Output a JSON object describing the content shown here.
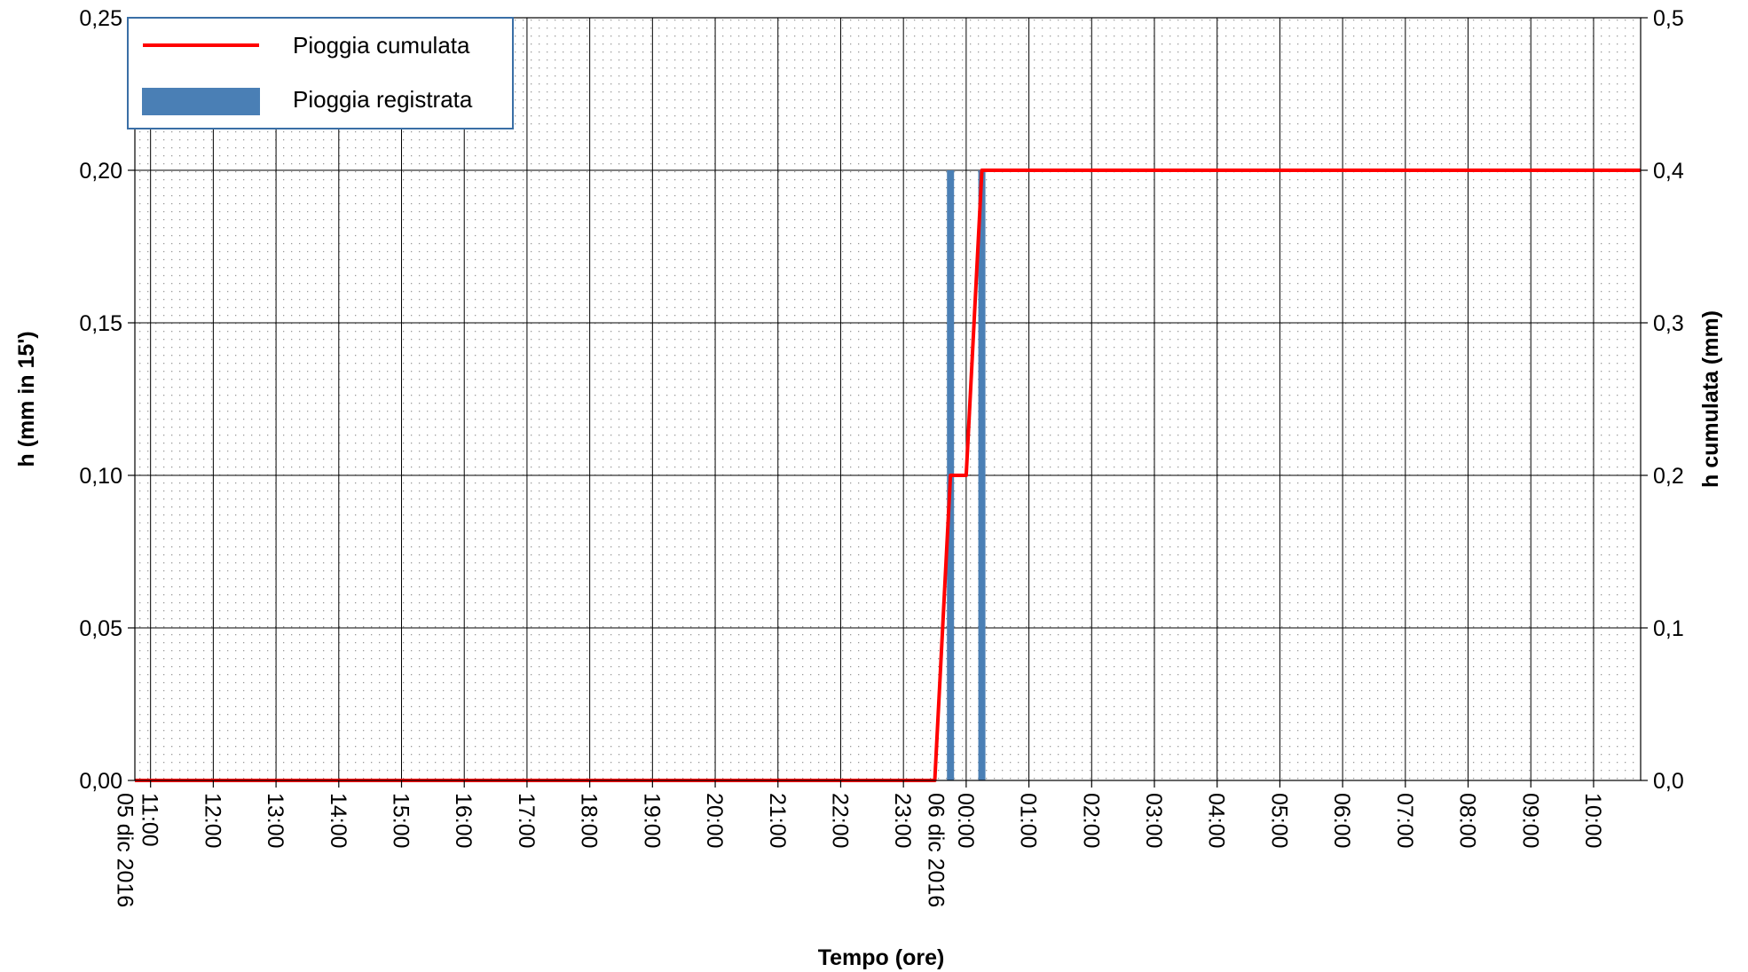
{
  "chart_data": {
    "type": "bar",
    "combo": "bar + cumulative line on secondary axis",
    "xlabel": "Tempo (ore)",
    "ylabel_left": "h (mm in 15')",
    "ylabel_right": "h cumulata (mm)",
    "ylim_left": [
      0,
      0.25
    ],
    "ylim_right": [
      0,
      0.5
    ],
    "x_range": [
      "2016-12-05 10:45",
      "2016-12-06 10:45"
    ],
    "grid": true,
    "legend_position": "top-left",
    "left_ticks": [
      "0,00",
      "0,05",
      "0,10",
      "0,15",
      "0,20",
      "0,25"
    ],
    "right_ticks": [
      "0,0",
      "0,1",
      "0,2",
      "0,3",
      "0,4",
      "0,5"
    ],
    "x_tick_labels": [
      "05 dic 2016",
      "11:00",
      "12:00",
      "13:00",
      "14:00",
      "15:00",
      "16:00",
      "17:00",
      "18:00",
      "19:00",
      "20:00",
      "21:00",
      "22:00",
      "23:00",
      "06 dic 2016",
      "00:00",
      "01:00",
      "02:00",
      "03:00",
      "04:00",
      "05:00",
      "06:00",
      "07:00",
      "08:00",
      "09:00",
      "10:00"
    ],
    "series": [
      {
        "name": "Pioggia registrata",
        "type": "bar",
        "axis": "left",
        "color": "#4a7fb5",
        "points": [
          {
            "x": "2016-12-05 23:45",
            "y": 0.2
          },
          {
            "x": "2016-12-06 00:15",
            "y": 0.2
          }
        ]
      },
      {
        "name": "Pioggia cumulata",
        "type": "line",
        "axis": "right",
        "color": "#ff0000",
        "points": [
          {
            "x": "2016-12-05 10:45",
            "y": 0.0
          },
          {
            "x": "2016-12-05 23:30",
            "y": 0.0
          },
          {
            "x": "2016-12-05 23:45",
            "y": 0.2
          },
          {
            "x": "2016-12-06 00:00",
            "y": 0.2
          },
          {
            "x": "2016-12-06 00:15",
            "y": 0.4
          },
          {
            "x": "2016-12-06 10:45",
            "y": 0.4
          }
        ]
      }
    ]
  }
}
